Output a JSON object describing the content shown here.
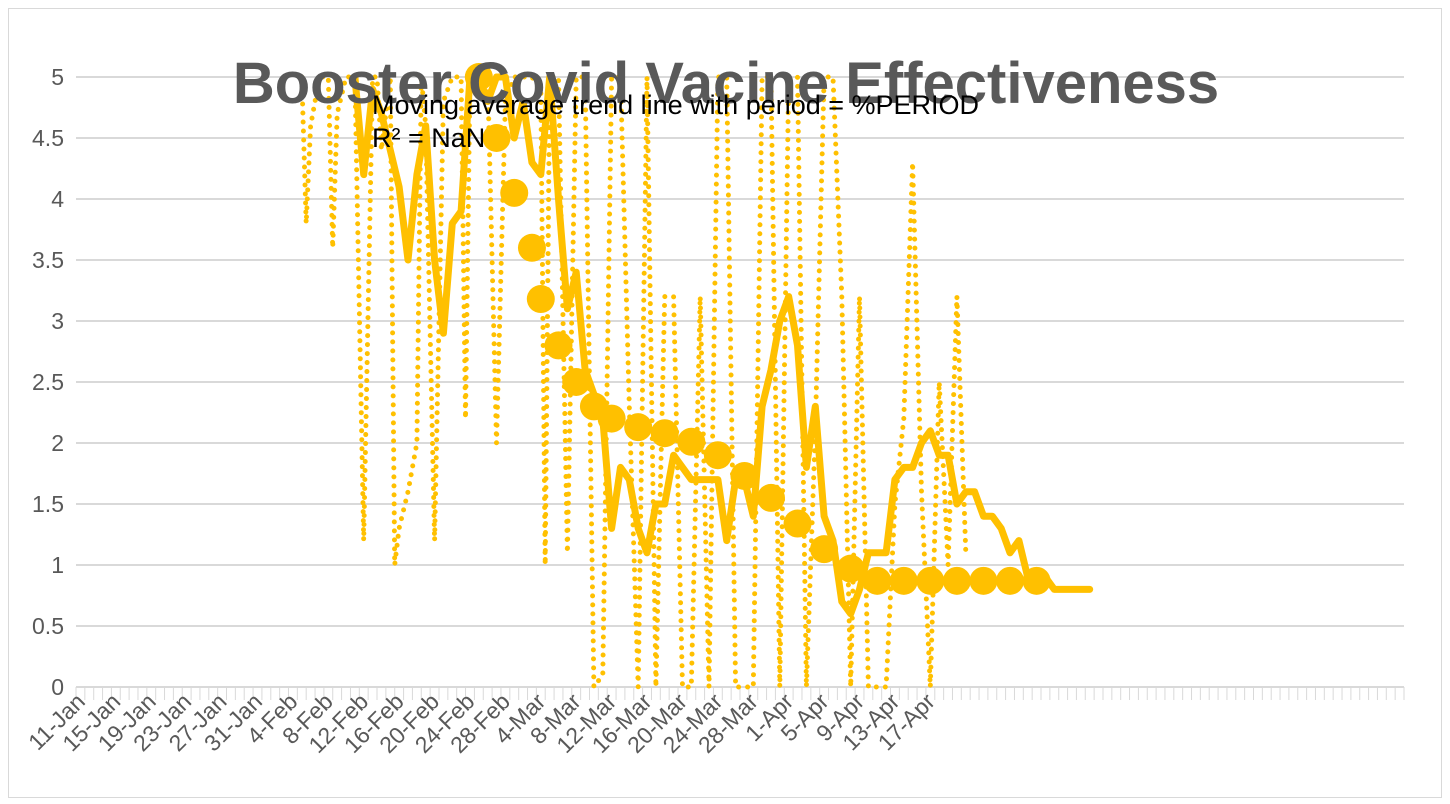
{
  "chart_data": {
    "type": "line",
    "title": "Booster Covid Vacine Effectiveness",
    "trendline_label": "Moving average trend line with period = %PERIOD",
    "r2_label": "R² = NaN",
    "xlabel": "",
    "ylabel": "",
    "ylim": [
      0,
      5
    ],
    "y_ticks": [
      "0",
      "0.5",
      "1",
      "1.5",
      "2",
      "2.5",
      "3",
      "3.5",
      "4",
      "4.5",
      "5"
    ],
    "x_tick_labels": [
      "11-Jan",
      "15-Jan",
      "19-Jan",
      "23-Jan",
      "27-Jan",
      "31-Jan",
      "4-Feb",
      "8-Feb",
      "12-Feb",
      "16-Feb",
      "20-Feb",
      "24-Feb",
      "28-Feb",
      "4-Mar",
      "8-Mar",
      "12-Mar",
      "16-Mar",
      "20-Mar",
      "24-Mar",
      "28-Mar",
      "1-Apr",
      "5-Apr",
      "9-Apr",
      "13-Apr",
      "17-Apr"
    ],
    "grid": true,
    "color": "#FFC000",
    "series": [
      {
        "style": "dotted",
        "x": [
          25,
          25.5,
          26,
          27,
          28,
          28.5,
          29,
          30,
          31,
          32,
          33,
          33.5,
          34,
          35,
          35.5,
          36,
          37,
          38,
          38.5,
          39,
          40,
          41,
          42,
          43,
          43.5,
          44,
          45,
          46,
          47,
          48,
          49,
          50,
          51,
          52,
          52.5,
          53,
          54,
          55,
          56,
          57,
          58,
          59,
          60,
          61,
          62,
          63,
          64,
          65,
          66,
          67,
          68,
          69,
          70,
          71,
          72,
          73,
          74,
          75,
          76,
          77,
          78,
          79,
          80,
          81,
          82,
          83,
          84,
          85,
          86,
          87,
          88,
          89,
          90,
          91,
          92,
          93,
          94,
          95,
          96,
          97,
          98,
          99,
          100
        ],
        "values": [
          5,
          3.8,
          4.6,
          5,
          5,
          3.6,
          4.7,
          5,
          5,
          1.2,
          5,
          5,
          4.4,
          5,
          1,
          1.3,
          1.6,
          2,
          5,
          4.6,
          1.2,
          4.8,
          5,
          5,
          2.2,
          5,
          5,
          5,
          2,
          4.8,
          5,
          5,
          5,
          4.9,
          1,
          5,
          5,
          1.1,
          5,
          5,
          0,
          0.1,
          5,
          5,
          2.3,
          0,
          5,
          0,
          3.2,
          3.2,
          0,
          0,
          3.2,
          0,
          5,
          5,
          0,
          0,
          0,
          5,
          5,
          0,
          5,
          5,
          0,
          2.1,
          5,
          5,
          3.2,
          0,
          3.2,
          0,
          0,
          0,
          1.5,
          2.2,
          4.3,
          1.6,
          0,
          2.5,
          1,
          3.2,
          1.1
        ]
      },
      {
        "style": "solid",
        "x": [
          31,
          32,
          33,
          34,
          35,
          36,
          37,
          38,
          39,
          40,
          41,
          42,
          43,
          44,
          45,
          46,
          47,
          48,
          49,
          50,
          51,
          52,
          53,
          54,
          55,
          56,
          57,
          58,
          59,
          60,
          61,
          62,
          63,
          64,
          65,
          66,
          67,
          68,
          69,
          70,
          71,
          72,
          73,
          74,
          75,
          76,
          77,
          78,
          79,
          80,
          81,
          82,
          83,
          84,
          85,
          86,
          87,
          88,
          89,
          90,
          91,
          92,
          93,
          94,
          95,
          96,
          97,
          98,
          99,
          100,
          101,
          102,
          103,
          104,
          105,
          106,
          107,
          108,
          109,
          110,
          111,
          112,
          113,
          114
        ],
        "values": [
          5,
          4.2,
          4.9,
          4.7,
          4.4,
          4.1,
          3.5,
          4.2,
          4.6,
          3.5,
          2.9,
          3.8,
          3.9,
          5,
          5,
          4.8,
          5,
          5,
          4.5,
          4.8,
          4.3,
          4.2,
          5,
          4,
          3.1,
          3.4,
          2.6,
          2.4,
          2.2,
          1.3,
          1.8,
          1.7,
          1.3,
          1.1,
          1.5,
          1.5,
          1.9,
          1.8,
          1.7,
          1.7,
          1.7,
          1.7,
          1.2,
          1.7,
          1.7,
          1.4,
          2.3,
          2.6,
          3,
          3.2,
          2.8,
          1.8,
          2.3,
          1.4,
          1.2,
          0.7,
          0.6,
          0.8,
          1.1,
          1.1,
          1.1,
          1.7,
          1.8,
          1.8,
          2,
          2.1,
          1.9,
          1.9,
          1.5,
          1.6,
          1.6,
          1.4,
          1.4,
          1.3,
          1.1,
          1.2,
          0.9,
          0.9,
          0.9,
          0.8,
          0.8,
          0.8,
          0.8,
          0.8
        ]
      },
      {
        "style": "markers",
        "x": [
          45,
          47,
          49,
          51,
          52,
          54,
          56,
          58,
          60,
          63,
          66,
          69,
          72,
          75,
          78,
          81,
          84,
          87,
          90,
          93,
          96,
          99,
          102,
          105,
          108
        ],
        "values": [
          5,
          4.5,
          4.05,
          3.6,
          3.18,
          2.8,
          2.5,
          2.3,
          2.2,
          2.13,
          2.08,
          2.01,
          1.9,
          1.73,
          1.55,
          1.34,
          1.13,
          0.97,
          0.87,
          0.87,
          0.87,
          0.87,
          0.87,
          0.87,
          0.87
        ]
      }
    ]
  }
}
